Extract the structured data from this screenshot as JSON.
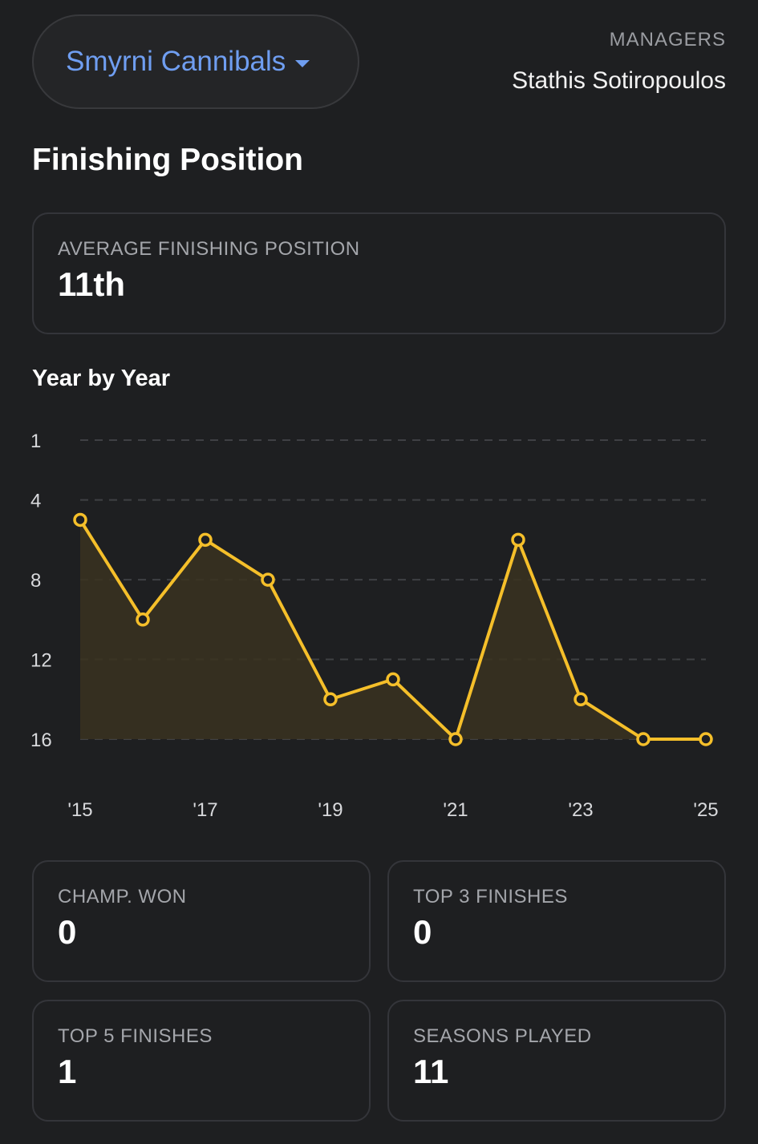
{
  "header": {
    "team_name": "Smyrni Cannibals",
    "managers_label": "MANAGERS",
    "manager_name": "Stathis Sotiropoulos"
  },
  "section_title": "Finishing Position",
  "average_card": {
    "label": "AVERAGE FINISHING POSITION",
    "value": "11th"
  },
  "year_by_year_title": "Year by Year",
  "chart_data": {
    "type": "line",
    "title": "Year by Year",
    "x": [
      "2015",
      "2016",
      "2017",
      "2018",
      "2019",
      "2020",
      "2021",
      "2022",
      "2023",
      "2024",
      "2025"
    ],
    "values": [
      5,
      10,
      6,
      8,
      14,
      13,
      16,
      6,
      14,
      16,
      16
    ],
    "x_tick_labels": [
      "'15",
      "'17",
      "'19",
      "'21",
      "'23",
      "'25"
    ],
    "x_tick_years": [
      "2015",
      "2017",
      "2019",
      "2021",
      "2023",
      "2025"
    ],
    "y_ticks": [
      1,
      4,
      8,
      12,
      16
    ],
    "y_inverted": true,
    "ylim": [
      1,
      16
    ],
    "grid": true,
    "line_color": "#f5bf2a",
    "fill_color": "#3a3320"
  },
  "stats": [
    {
      "label": "CHAMP. WON",
      "value": "0"
    },
    {
      "label": "TOP 3 FINISHES",
      "value": "0"
    },
    {
      "label": "TOP 5 FINISHES",
      "value": "1"
    },
    {
      "label": "SEASONS PLAYED",
      "value": "11"
    }
  ],
  "colors": {
    "background": "#1e1f21",
    "accent": "#6f9ef1",
    "chart_line": "#f5bf2a"
  }
}
